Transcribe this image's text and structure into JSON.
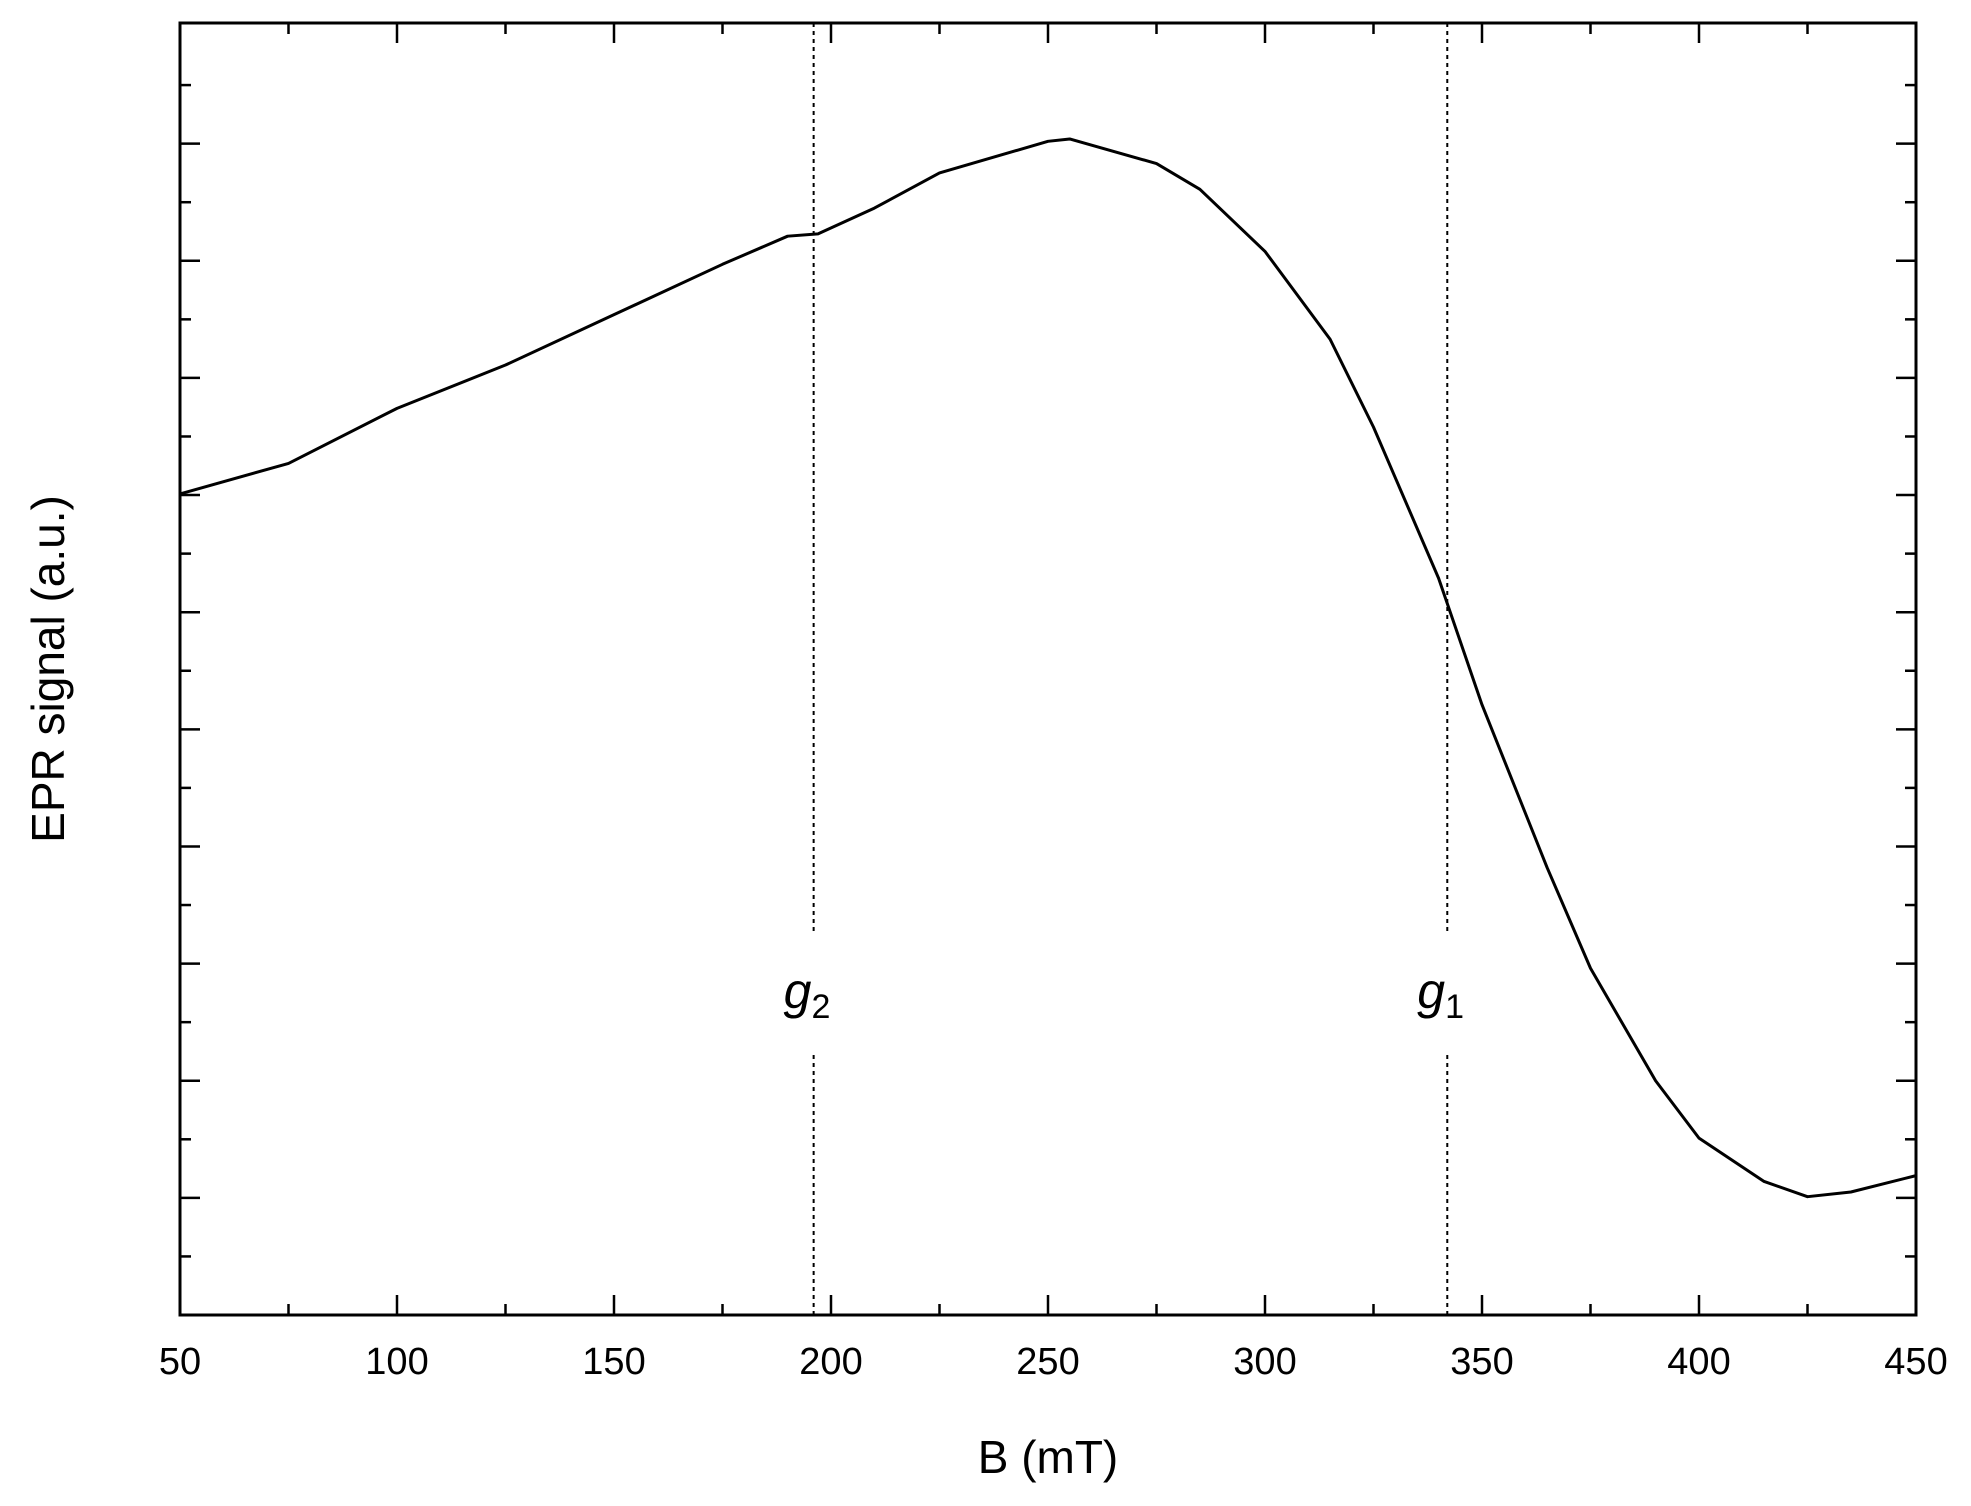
{
  "chart_data": {
    "type": "line",
    "xlabel": "B (mT)",
    "ylabel": "EPR signal (a.u.)",
    "x": [
      50,
      75,
      100,
      125,
      150,
      175,
      190,
      197,
      210,
      225,
      250,
      255,
      275,
      285,
      300,
      315,
      325,
      340,
      350,
      365,
      375,
      390,
      400,
      415,
      425,
      435,
      450
    ],
    "values": [
      7.01,
      7.27,
      7.74,
      8.11,
      8.54,
      8.97,
      9.21,
      9.23,
      9.45,
      9.75,
      10.02,
      10.04,
      9.83,
      9.61,
      9.08,
      8.33,
      7.58,
      6.29,
      5.21,
      3.82,
      2.96,
      2.0,
      1.51,
      1.14,
      1.01,
      1.05,
      1.19
    ],
    "color": "#000000",
    "xlim": [
      50,
      450
    ],
    "xticks": [
      50,
      100,
      150,
      200,
      250,
      300,
      350,
      400,
      450
    ],
    "xminorticks": [
      75,
      125,
      175,
      225,
      275,
      325,
      375,
      425
    ],
    "ylim": [
      0,
      11.03
    ],
    "yticks": [
      1,
      2,
      3,
      4,
      5,
      6,
      7,
      8,
      9,
      10
    ],
    "yminorticks": [
      0.5,
      1.5,
      2.5,
      3.5,
      4.5,
      5.5,
      6.5,
      7.5,
      8.5,
      9.5,
      10.5
    ],
    "annotations": [
      {
        "x": 196,
        "label": "g",
        "subscript": "2"
      },
      {
        "x": 342,
        "label": "g",
        "subscript": "1"
      }
    ]
  }
}
